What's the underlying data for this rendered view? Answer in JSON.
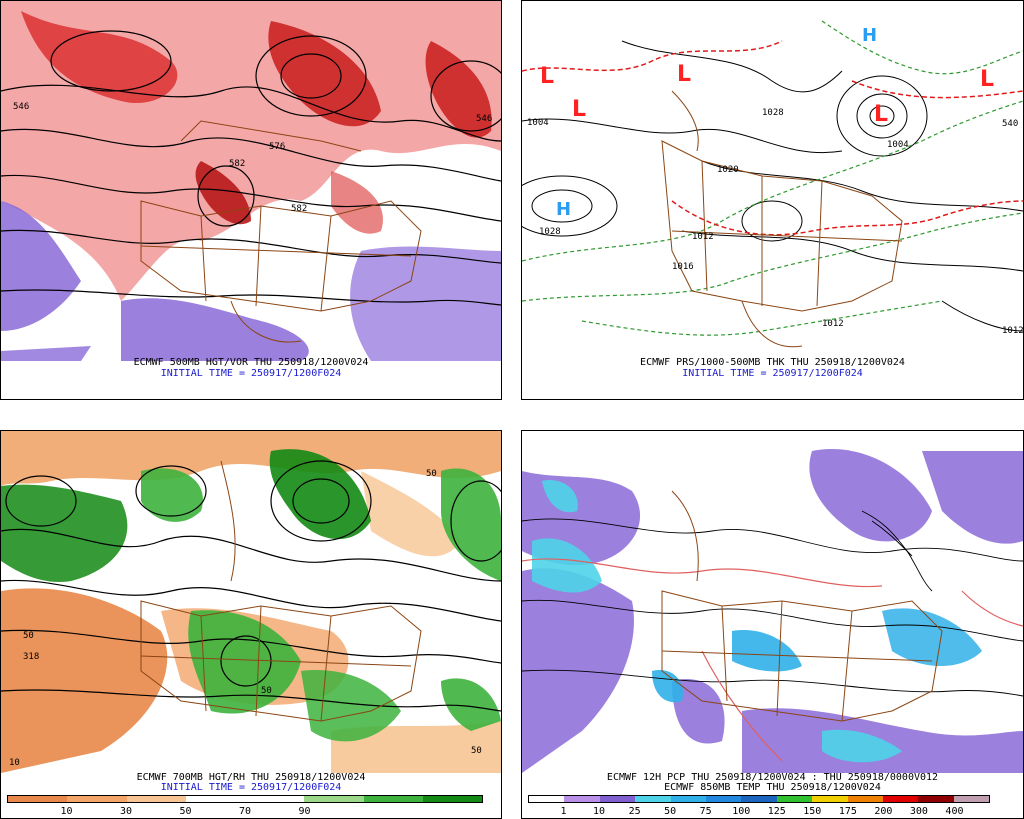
{
  "panels": [
    {
      "id": "p1",
      "line1": "ECMWF 500MB HGT/VOR THU 250918/1200V024",
      "line2": "INITIAL TIME = 250917/1200F024",
      "contour_labels": [
        "546",
        "582",
        "582",
        "546",
        "576"
      ]
    },
    {
      "id": "p2",
      "line1": "ECMWF PRS/1000-500MB THK THU 250918/1200V024",
      "line2": "INITIAL TIME = 250917/1200F024",
      "contour_labels": [
        "1004",
        "1028",
        "1020",
        "1028",
        "1004",
        "1012",
        "1012",
        "1012",
        "540",
        "1016"
      ],
      "symbols": {
        "low": "L",
        "high": "H"
      }
    },
    {
      "id": "p3",
      "line1": "ECMWF 700MB HGT/RH THU 250918/1200V024",
      "line2": "INITIAL TIME = 250917/1200F024",
      "contour_labels": [
        "50",
        "50",
        "318",
        "50",
        "10",
        "50"
      ],
      "colorbar": {
        "colors": [
          "#e8884a",
          "#f3a56a",
          "#f7c594",
          "#ffffff",
          "#ffffff",
          "#9bd88a",
          "#3db33d",
          "#138a13"
        ],
        "ticks": [
          "10",
          "30",
          "50",
          "70",
          "90"
        ]
      }
    },
    {
      "id": "p4",
      "line1": "ECMWF 12H PCP THU 250918/1200V024 : THU 250918/0000V012",
      "line2": "ECMWF 850MB TEMP THU 250918/1200V024",
      "colorbar": {
        "colors": [
          "#ffffff",
          "#b98fe8",
          "#8060d0",
          "#4fd3e8",
          "#30b0e8",
          "#2288e0",
          "#1c66c0",
          "#30c030",
          "#f0d000",
          "#f08000",
          "#e00000",
          "#900000",
          "#c0a0b0"
        ],
        "ticks": [
          "1",
          "10",
          "25",
          "50",
          "75",
          "100",
          "125",
          "150",
          "175",
          "200",
          "300",
          "400"
        ]
      }
    }
  ]
}
